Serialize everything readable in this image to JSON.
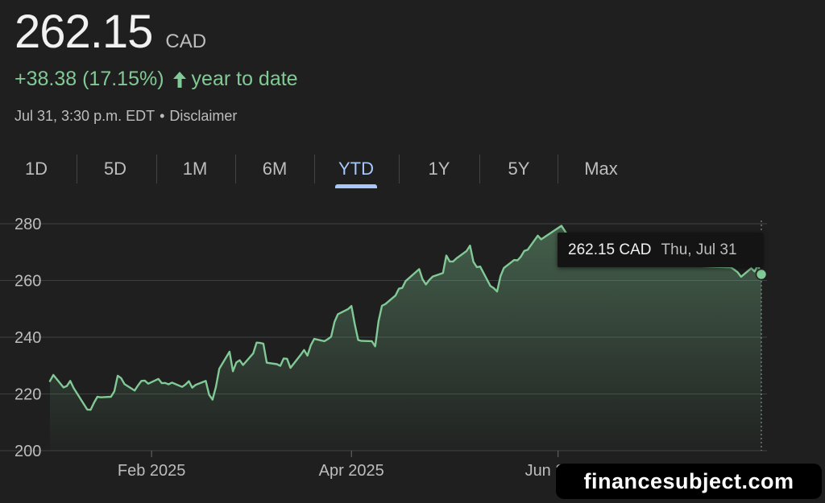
{
  "quote": {
    "price": "262.15",
    "currency": "CAD",
    "change": "+38.38 (17.15%)",
    "change_period": "year to date",
    "timestamp": "Jul 31, 3:30 p.m. EDT",
    "separator": "•",
    "disclaimer": "Disclaimer"
  },
  "tabs": [
    {
      "label": "1D"
    },
    {
      "label": "5D"
    },
    {
      "label": "1M"
    },
    {
      "label": "6M"
    },
    {
      "label": "YTD",
      "active": true
    },
    {
      "label": "1Y"
    },
    {
      "label": "5Y"
    },
    {
      "label": "Max"
    }
  ],
  "tooltip": {
    "value": "262.15 CAD",
    "date": "Thu, Jul 31"
  },
  "colors": {
    "background": "#1f1f1f",
    "line": "#81c995",
    "active_tab": "#a8c7fa",
    "gridline": "#3c4043"
  },
  "watermark": "financesubject.com",
  "chart_data": {
    "type": "line",
    "title": "",
    "xlabel": "",
    "ylabel": "",
    "ylim": [
      200,
      280
    ],
    "y_ticks": [
      200,
      220,
      240,
      260,
      280
    ],
    "x_tick_labels": [
      {
        "date": "2025-02-01",
        "label": "Feb 2025"
      },
      {
        "date": "2025-04-01",
        "label": "Apr 2025"
      },
      {
        "date": "2025-06-01",
        "label": "Jun 2025"
      }
    ],
    "x_range": [
      "2025-01-02",
      "2025-07-31"
    ],
    "grid": true,
    "series": [
      {
        "name": "",
        "points": [
          [
            "2025-01-02",
            224.5
          ],
          [
            "2025-01-03",
            226.7
          ],
          [
            "2025-01-06",
            222.3
          ],
          [
            "2025-01-07",
            222.8
          ],
          [
            "2025-01-08",
            224.6
          ],
          [
            "2025-01-09",
            222.1
          ],
          [
            "2025-01-10",
            220.2
          ],
          [
            "2025-01-13",
            214.5
          ],
          [
            "2025-01-14",
            214.4
          ],
          [
            "2025-01-15",
            216.9
          ],
          [
            "2025-01-16",
            219.0
          ],
          [
            "2025-01-17",
            218.8
          ],
          [
            "2025-01-20",
            219.0
          ],
          [
            "2025-01-21",
            220.9
          ],
          [
            "2025-01-22",
            226.4
          ],
          [
            "2025-01-23",
            225.6
          ],
          [
            "2025-01-24",
            223.5
          ],
          [
            "2025-01-27",
            221.2
          ],
          [
            "2025-01-28",
            223.0
          ],
          [
            "2025-01-29",
            224.6
          ],
          [
            "2025-01-30",
            224.7
          ],
          [
            "2025-01-31",
            223.6
          ],
          [
            "2025-02-03",
            225.3
          ],
          [
            "2025-02-04",
            223.8
          ],
          [
            "2025-02-05",
            223.9
          ],
          [
            "2025-02-06",
            223.4
          ],
          [
            "2025-02-07",
            224.0
          ],
          [
            "2025-02-10",
            222.5
          ],
          [
            "2025-02-11",
            223.3
          ],
          [
            "2025-02-12",
            224.5
          ],
          [
            "2025-02-13",
            222.2
          ],
          [
            "2025-02-14",
            223.2
          ],
          [
            "2025-02-17",
            224.6
          ],
          [
            "2025-02-18",
            219.7
          ],
          [
            "2025-02-19",
            218.0
          ],
          [
            "2025-02-20",
            222.5
          ],
          [
            "2025-02-21",
            228.9
          ],
          [
            "2025-02-24",
            234.9
          ],
          [
            "2025-02-25",
            228.0
          ],
          [
            "2025-02-26",
            231.1
          ],
          [
            "2025-02-27",
            231.9
          ],
          [
            "2025-02-28",
            230.2
          ],
          [
            "2025-03-03",
            234.3
          ],
          [
            "2025-03-04",
            238.1
          ],
          [
            "2025-03-05",
            238.0
          ],
          [
            "2025-03-06",
            237.7
          ],
          [
            "2025-03-07",
            231.0
          ],
          [
            "2025-03-10",
            230.5
          ],
          [
            "2025-03-11",
            229.9
          ],
          [
            "2025-03-12",
            232.5
          ],
          [
            "2025-03-13",
            232.4
          ],
          [
            "2025-03-14",
            229.2
          ],
          [
            "2025-03-17",
            233.8
          ],
          [
            "2025-03-18",
            235.5
          ],
          [
            "2025-03-19",
            233.5
          ],
          [
            "2025-03-20",
            237.2
          ],
          [
            "2025-03-21",
            239.4
          ],
          [
            "2025-03-24",
            238.6
          ],
          [
            "2025-03-25",
            239.3
          ],
          [
            "2025-03-26",
            240.2
          ],
          [
            "2025-03-27",
            245.4
          ],
          [
            "2025-03-28",
            248.1
          ],
          [
            "2025-03-31",
            249.9
          ],
          [
            "2025-04-01",
            251.0
          ],
          [
            "2025-04-02",
            244.5
          ],
          [
            "2025-04-03",
            239.0
          ],
          [
            "2025-04-04",
            238.7
          ],
          [
            "2025-04-07",
            238.6
          ],
          [
            "2025-04-08",
            236.8
          ],
          [
            "2025-04-09",
            245.7
          ],
          [
            "2025-04-10",
            251.1
          ],
          [
            "2025-04-11",
            251.7
          ],
          [
            "2025-04-14",
            254.7
          ],
          [
            "2025-04-15",
            257.1
          ],
          [
            "2025-04-16",
            257.4
          ],
          [
            "2025-04-17",
            259.8
          ],
          [
            "2025-04-21",
            264.0
          ],
          [
            "2025-04-22",
            260.4
          ],
          [
            "2025-04-23",
            258.6
          ],
          [
            "2025-04-24",
            260.2
          ],
          [
            "2025-04-25",
            261.4
          ],
          [
            "2025-04-28",
            262.6
          ],
          [
            "2025-04-29",
            268.8
          ],
          [
            "2025-04-30",
            266.7
          ],
          [
            "2025-05-01",
            266.7
          ],
          [
            "2025-05-02",
            267.8
          ],
          [
            "2025-05-05",
            270.4
          ],
          [
            "2025-05-06",
            272.3
          ],
          [
            "2025-05-07",
            266.6
          ],
          [
            "2025-05-08",
            264.7
          ],
          [
            "2025-05-09",
            264.9
          ],
          [
            "2025-05-12",
            258.1
          ],
          [
            "2025-05-13",
            257.3
          ],
          [
            "2025-05-14",
            256.1
          ],
          [
            "2025-05-15",
            261.5
          ],
          [
            "2025-05-16",
            264.4
          ],
          [
            "2025-05-19",
            267.2
          ],
          [
            "2025-05-20",
            267.1
          ],
          [
            "2025-05-21",
            268.4
          ],
          [
            "2025-05-22",
            270.4
          ],
          [
            "2025-05-23",
            270.8
          ],
          [
            "2025-05-26",
            275.8
          ],
          [
            "2025-05-27",
            274.5
          ],
          [
            "2025-06-02",
            279.3
          ],
          [
            "2025-06-09",
            266.3
          ],
          [
            "2025-06-13",
            265.6
          ],
          [
            "2025-06-20",
            266.9
          ],
          [
            "2025-06-27",
            265.4
          ],
          [
            "2025-07-03",
            266.1
          ],
          [
            "2025-07-10",
            265.2
          ],
          [
            "2025-07-17",
            264.8
          ],
          [
            "2025-07-22",
            264.6
          ],
          [
            "2025-07-23",
            263.8
          ],
          [
            "2025-07-24",
            262.9
          ],
          [
            "2025-07-25",
            261.3
          ],
          [
            "2025-07-28",
            264.3
          ],
          [
            "2025-07-29",
            263.2
          ],
          [
            "2025-07-30",
            265.4
          ],
          [
            "2025-07-31",
            262.15
          ]
        ]
      }
    ],
    "annotations": [
      {
        "date": "2025-07-31",
        "value": 262.15,
        "text": "262.15 CAD Thu, Jul 31"
      }
    ]
  }
}
